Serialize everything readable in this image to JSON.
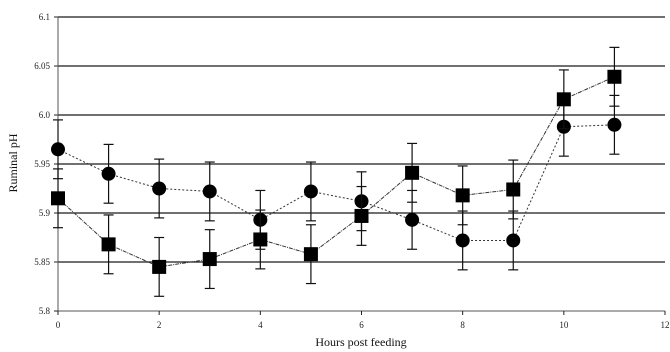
{
  "chart_data": {
    "type": "line",
    "title": "",
    "xlabel": "Hours post feeding",
    "ylabel": "Ruminal pH",
    "xlim": [
      0,
      12
    ],
    "ylim": [
      5.8,
      6.1
    ],
    "xticks": [
      "0",
      "2",
      "4",
      "6",
      "8",
      "10",
      "12"
    ],
    "yticks": [
      "5.8",
      "5.85",
      "5.9",
      "5.95",
      "6.0",
      "6.05",
      "6.1"
    ],
    "grid": true,
    "legend": "none",
    "series": [
      {
        "marker": "circle",
        "x": [
          0,
          1,
          2,
          3,
          4,
          5,
          6,
          7,
          8,
          9,
          10,
          11
        ],
        "values": [
          5.965,
          5.94,
          5.925,
          5.922,
          5.893,
          5.922,
          5.912,
          5.893,
          5.872,
          5.872,
          5.988,
          5.99
        ],
        "error": [
          0.03,
          0.03,
          0.03,
          0.03,
          0.03,
          0.03,
          0.03,
          0.03,
          0.03,
          0.03,
          0.03,
          0.03
        ]
      },
      {
        "marker": "square",
        "x": [
          0,
          1,
          2,
          3,
          4,
          5,
          6,
          7,
          8,
          9,
          10,
          11
        ],
        "values": [
          5.915,
          5.868,
          5.845,
          5.853,
          5.873,
          5.858,
          5.897,
          5.941,
          5.918,
          5.924,
          6.016,
          6.039
        ],
        "error": [
          0.03,
          0.03,
          0.03,
          0.03,
          0.03,
          0.03,
          0.03,
          0.03,
          0.03,
          0.03,
          0.03,
          0.03
        ]
      }
    ]
  }
}
